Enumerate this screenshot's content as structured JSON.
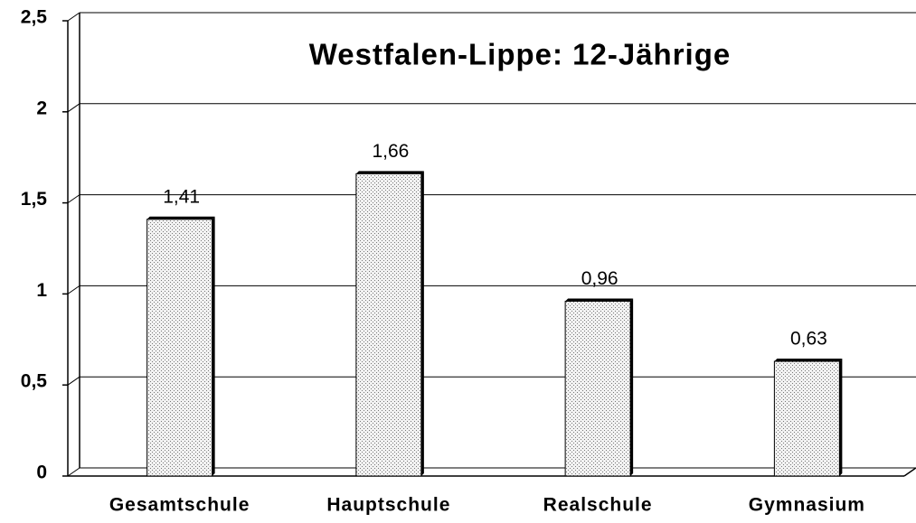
{
  "chart_data": {
    "type": "bar",
    "title": "Westfalen-Lippe: 12-Jährige",
    "categories": [
      "Gesamtschule",
      "Hauptschule",
      "Realschule",
      "Gymnasium"
    ],
    "values": [
      1.41,
      1.66,
      0.96,
      0.63
    ],
    "value_labels": [
      "1,41",
      "1,66",
      "0,96",
      "0,63"
    ],
    "ylim": [
      0,
      2.5
    ],
    "yticks": [
      0,
      {
        "value": 0.5,
        "label": "0,5"
      },
      1,
      {
        "value": 1.5,
        "label": "1,5"
      },
      2,
      {
        "value": 2.5,
        "label": "2,5"
      }
    ],
    "grid": true
  }
}
